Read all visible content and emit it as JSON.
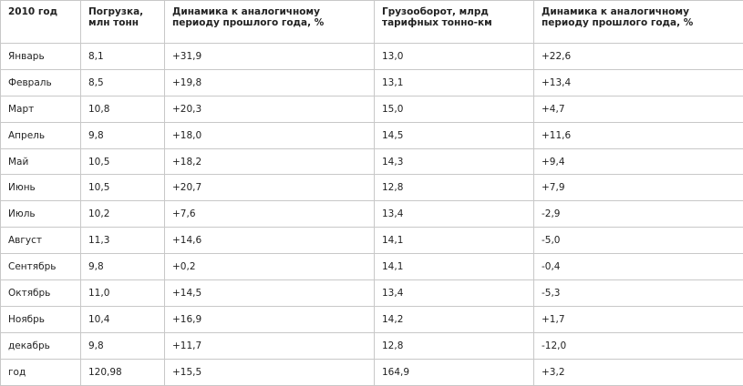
{
  "table": {
    "header": [
      "2010 год",
      "Погрузка, млн тонн",
      "Динамика к аналогичному периоду прошлого года, %",
      "Грузооборот, млрд тарифных тонно-км",
      "Динамика к аналогичному периоду прошлого года, %"
    ],
    "rows": [
      [
        "Январь",
        "8,1",
        "+31,9",
        "13,0",
        "+22,6"
      ],
      [
        "Февраль",
        "8,5",
        "+19,8",
        "13,1",
        "+13,4"
      ],
      [
        "Март",
        "10,8",
        "+20,3",
        "15,0",
        "+4,7"
      ],
      [
        "Апрель",
        "9,8",
        "+18,0",
        "14,5",
        "+11,6"
      ],
      [
        "Май",
        "10,5",
        "+18,2",
        "14,3",
        "+9,4"
      ],
      [
        "Июнь",
        "10,5",
        "+20,7",
        "12,8",
        "+7,9"
      ],
      [
        "Июль",
        "10,2",
        "+7,6",
        "13,4",
        "-2,9"
      ],
      [
        "Август",
        "11,3",
        "+14,6",
        "14,1",
        "-5,0"
      ],
      [
        "Сентябрь",
        "9,8",
        "+0,2",
        "14,1",
        "-0,4"
      ],
      [
        "Октябрь",
        "11,0",
        "+14,5",
        "13,4",
        "-5,3"
      ],
      [
        "Ноябрь",
        "10,4",
        "+16,9",
        "14,2",
        "+1,7"
      ],
      [
        "декабрь",
        "9,8",
        "+11,7",
        "12,8",
        "-12,0"
      ],
      [
        "год",
        "120,98",
        "+15,5",
        "164,9",
        "+3,2"
      ]
    ]
  }
}
